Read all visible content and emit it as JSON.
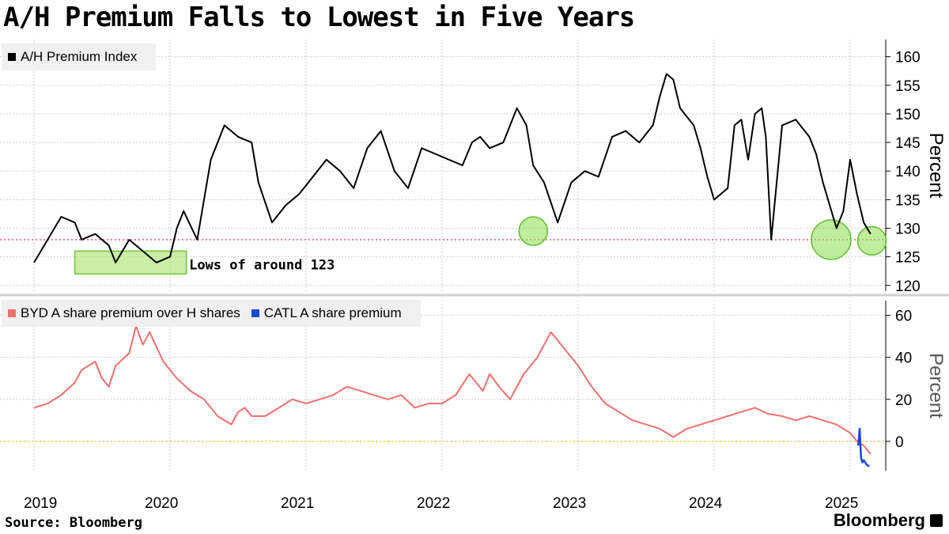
{
  "title": "A/H Premium Falls to Lowest in Five Years",
  "source": "Source: Bloomberg",
  "brand": "Bloomberg",
  "chart_data": [
    {
      "type": "line",
      "series": [
        {
          "name": "A/H Premium Index",
          "color": "#000000"
        }
      ],
      "ylabel": "Percent",
      "ylim": [
        119,
        163
      ],
      "yticks": [
        120,
        125,
        130,
        135,
        140,
        145,
        150,
        155,
        160
      ],
      "ytick_labels": [
        "120",
        "125",
        "130",
        "135",
        "140",
        "145",
        "150",
        "155",
        "160"
      ],
      "reference_line": {
        "y": 128,
        "color": "#e05a6a",
        "style": "dotted"
      },
      "annotation": "Lows of around 123",
      "x": [
        2019.0,
        2019.1,
        2019.2,
        2019.3,
        2019.35,
        2019.45,
        2019.55,
        2019.6,
        2019.7,
        2019.8,
        2019.9,
        2020.0,
        2020.05,
        2020.1,
        2020.2,
        2020.3,
        2020.4,
        2020.5,
        2020.6,
        2020.65,
        2020.75,
        2020.85,
        2020.95,
        2021.05,
        2021.15,
        2021.25,
        2021.35,
        2021.45,
        2021.55,
        2021.65,
        2021.75,
        2021.85,
        2021.95,
        2022.05,
        2022.15,
        2022.22,
        2022.28,
        2022.35,
        2022.45,
        2022.55,
        2022.62,
        2022.67,
        2022.75,
        2022.85,
        2022.95,
        2023.05,
        2023.15,
        2023.25,
        2023.35,
        2023.45,
        2023.55,
        2023.6,
        2023.65,
        2023.7,
        2023.75,
        2023.85,
        2023.9,
        2023.95,
        2024.0,
        2024.1,
        2024.15,
        2024.2,
        2024.25,
        2024.3,
        2024.35,
        2024.38,
        2024.42,
        2024.5,
        2024.6,
        2024.7,
        2024.75,
        2024.8,
        2024.85,
        2024.9,
        2024.95,
        2025.0,
        2025.05,
        2025.1,
        2025.15
      ],
      "values": [
        124,
        128,
        132,
        131,
        128,
        129,
        127,
        124,
        128,
        126,
        124,
        125,
        130,
        133,
        128,
        142,
        148,
        146,
        145,
        138,
        131,
        134,
        136,
        139,
        142,
        140,
        137,
        144,
        147,
        140,
        137,
        144,
        143,
        142,
        141,
        145,
        146,
        144,
        145,
        151,
        148,
        141,
        138,
        131,
        138,
        140,
        139,
        146,
        147,
        145,
        148,
        153,
        157,
        156,
        151,
        148,
        144,
        139,
        135,
        137,
        148,
        149,
        142,
        150,
        151,
        146,
        128,
        148,
        149,
        146,
        143,
        138,
        134,
        130,
        133,
        142,
        136,
        131,
        129
      ]
    },
    {
      "type": "line",
      "series": [
        {
          "name": "BYD A share premium over H shares",
          "color": "#ef6f6f"
        },
        {
          "name": "CATL A share premium",
          "color": "#1a49d8"
        }
      ],
      "ylabel": "Percent",
      "ylim": [
        -14,
        67
      ],
      "yticks": [
        0,
        20,
        40,
        60
      ],
      "ytick_labels": [
        "0",
        "20",
        "40",
        "60"
      ],
      "reference_line": {
        "y": 0,
        "color": "#e8dc3a",
        "style": "dotted"
      },
      "byd_x": [
        2019.0,
        2019.1,
        2019.2,
        2019.3,
        2019.35,
        2019.45,
        2019.5,
        2019.55,
        2019.6,
        2019.7,
        2019.75,
        2019.8,
        2019.85,
        2019.95,
        2020.05,
        2020.15,
        2020.25,
        2020.35,
        2020.45,
        2020.5,
        2020.55,
        2020.6,
        2020.7,
        2020.8,
        2020.9,
        2021.0,
        2021.1,
        2021.2,
        2021.3,
        2021.4,
        2021.5,
        2021.6,
        2021.7,
        2021.8,
        2021.9,
        2022.0,
        2022.1,
        2022.2,
        2022.3,
        2022.35,
        2022.42,
        2022.5,
        2022.6,
        2022.7,
        2022.8,
        2022.9,
        2023.0,
        2023.1,
        2023.2,
        2023.3,
        2023.4,
        2023.5,
        2023.6,
        2023.7,
        2023.8,
        2023.9,
        2024.0,
        2024.1,
        2024.2,
        2024.3,
        2024.4,
        2024.5,
        2024.6,
        2024.7,
        2024.8,
        2024.9,
        2025.0,
        2025.05,
        2025.1,
        2025.15
      ],
      "byd_values": [
        16,
        18,
        22,
        28,
        34,
        38,
        30,
        26,
        36,
        42,
        55,
        46,
        52,
        38,
        30,
        24,
        20,
        12,
        8,
        14,
        16,
        12,
        12,
        16,
        20,
        18,
        20,
        22,
        26,
        24,
        22,
        20,
        22,
        16,
        18,
        18,
        22,
        32,
        24,
        32,
        26,
        20,
        32,
        40,
        52,
        44,
        36,
        26,
        18,
        14,
        10,
        8,
        6,
        2,
        6,
        8,
        10,
        12,
        14,
        16,
        13,
        12,
        10,
        12,
        10,
        8,
        4,
        0,
        -2,
        -6
      ],
      "catl_x": [
        2025.06,
        2025.07,
        2025.08,
        2025.09,
        2025.1,
        2025.12,
        2025.14
      ],
      "catl_values": [
        -2,
        6,
        -8,
        -10,
        -9,
        -11,
        -12
      ]
    }
  ],
  "x_ticks": [
    "2019",
    "2020",
    "2021",
    "2022",
    "2023",
    "2024",
    "2025"
  ],
  "legend": {
    "top": [
      "A/H Premium Index"
    ],
    "bottom": [
      "BYD A share premium over H shares",
      "CATL A share premium"
    ]
  }
}
